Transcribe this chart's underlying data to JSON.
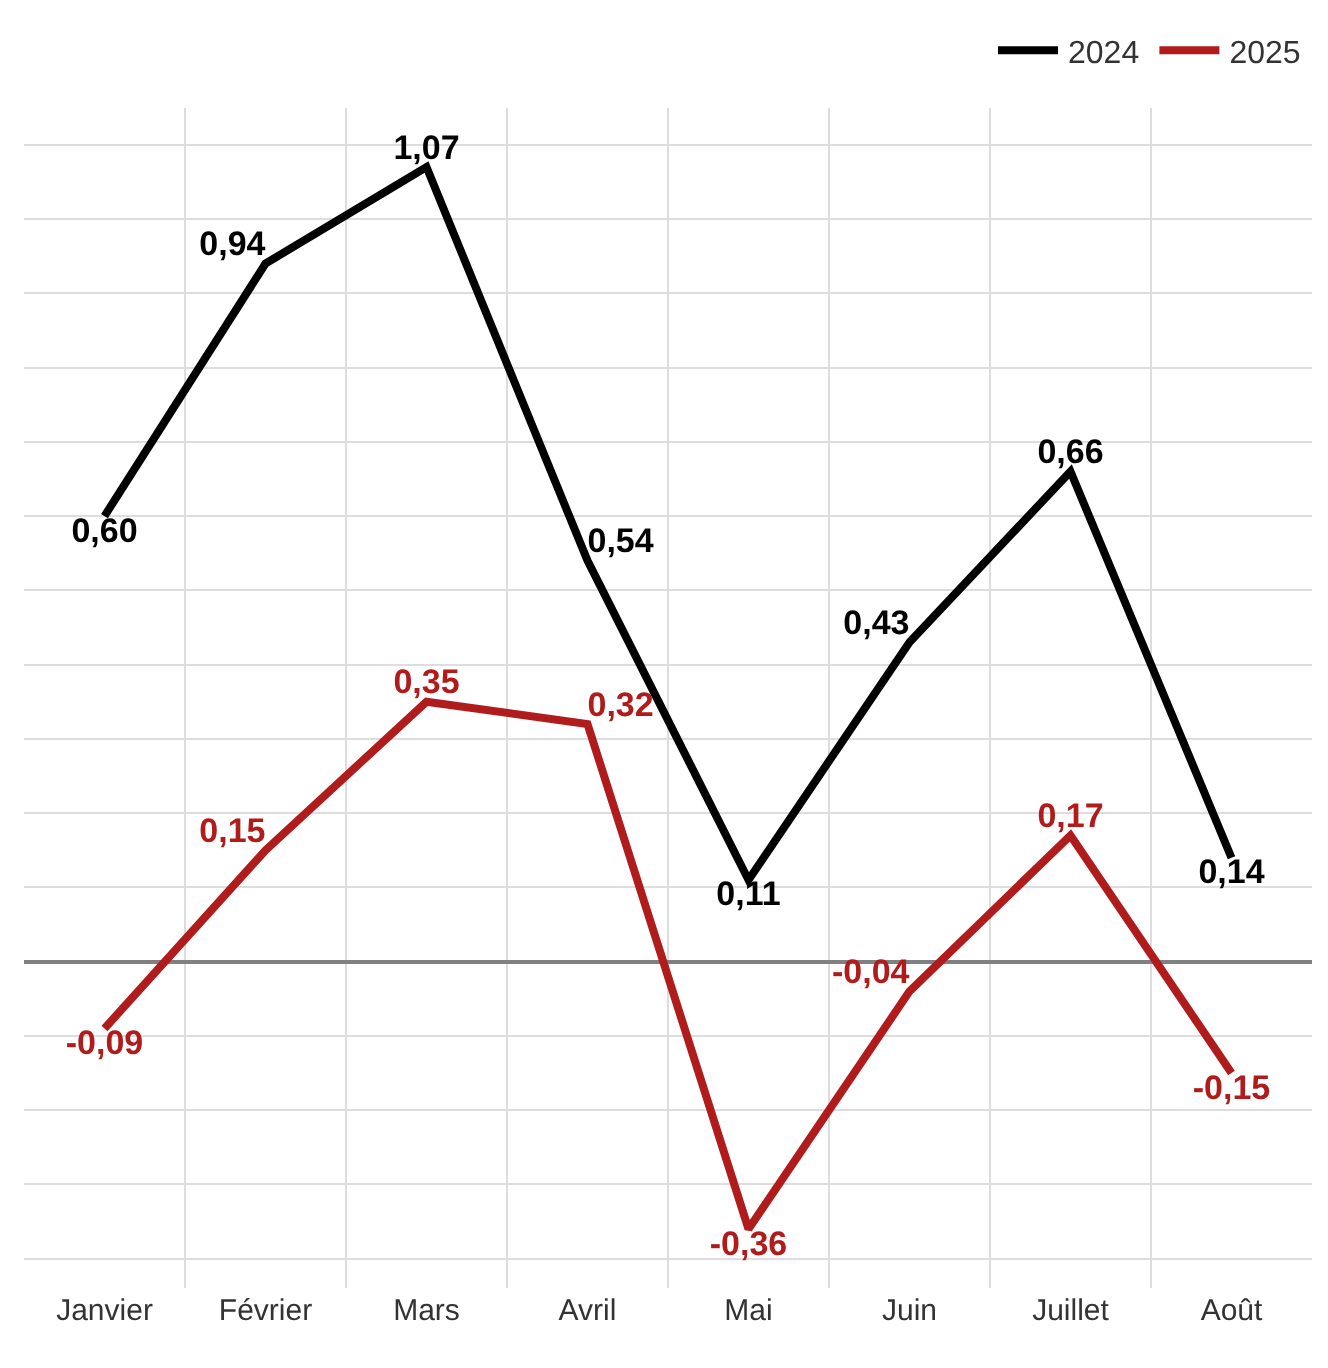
{
  "chart_data": {
    "type": "line",
    "categories": [
      "Janvier",
      "Février",
      "Mars",
      "Avril",
      "Mai",
      "Juin",
      "Juillet",
      "Août"
    ],
    "series": [
      {
        "name": "2024",
        "color": "#000000",
        "values": [
          0.6,
          0.94,
          1.07,
          0.54,
          0.11,
          0.43,
          0.66,
          0.14
        ],
        "value_labels": [
          "0,60",
          "0,94",
          "1,07",
          "0,54",
          "0,11",
          "0,43",
          "0,66",
          "0,14"
        ]
      },
      {
        "name": "2025",
        "color": "#b01c1c",
        "values": [
          -0.09,
          0.15,
          0.35,
          0.32,
          -0.36,
          -0.04,
          0.17,
          -0.15
        ],
        "value_labels": [
          "-0,09",
          "0,15",
          "0,35",
          "0,32",
          "-0,36",
          "-0,04",
          "0,17",
          "-0,15"
        ]
      }
    ],
    "tick_labels": "x",
    "grid": true,
    "legend": "top right",
    "marker": "none",
    "line_style": "solid"
  }
}
